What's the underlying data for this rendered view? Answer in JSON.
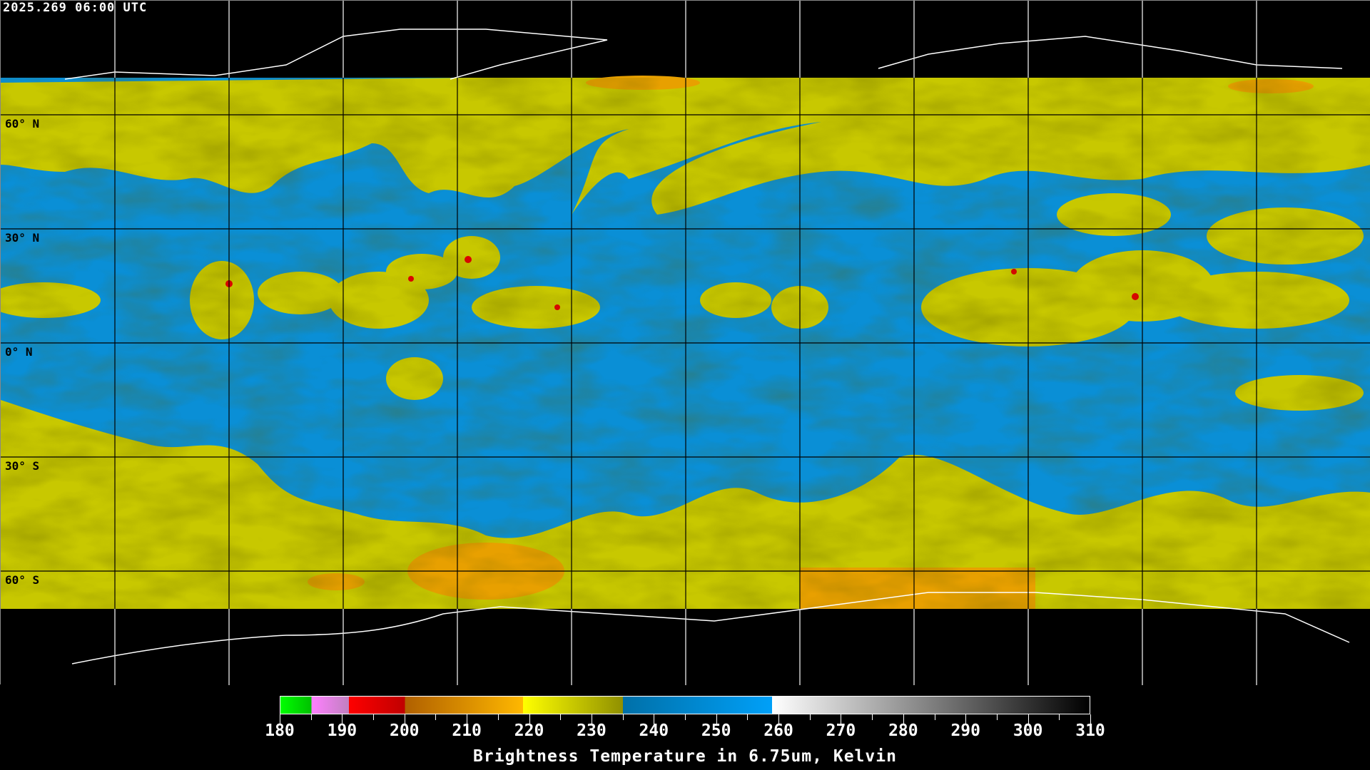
{
  "header": {
    "timestamp": "2025.269 06:00 UTC"
  },
  "map": {
    "projection": "equirectangular",
    "longitude_range": [
      -180,
      180
    ],
    "latitude_range": [
      -90,
      90
    ],
    "grid_spacing_degrees": 30,
    "latitude_labels": [
      "60° N",
      "30° N",
      "0° N",
      "30° S",
      "60° S"
    ],
    "colors": {
      "background": "#000000",
      "moist": "#0a8fd6",
      "dry_band": "#d4d400",
      "cold": "#e8a000",
      "deep": "#e00000",
      "coastline_land": "#000000",
      "coastline_polar": "#ffffff",
      "grid": "#000000"
    }
  },
  "colorbar": {
    "min": 180,
    "max": 310,
    "tick_labels": [
      "180",
      "190",
      "200",
      "210",
      "220",
      "230",
      "240",
      "250",
      "260",
      "270",
      "280",
      "290",
      "300",
      "310"
    ],
    "minor_tick_step": 5,
    "segments": [
      {
        "from": 180,
        "to": 185,
        "c1": "#00ff00",
        "c2": "#00c000"
      },
      {
        "from": 185,
        "to": 191,
        "c1": "#ff80ff",
        "c2": "#c080c0"
      },
      {
        "from": 191,
        "to": 200,
        "c1": "#ff0000",
        "c2": "#c00000"
      },
      {
        "from": 200,
        "to": 219,
        "c1": "#b06000",
        "c2": "#ffb800"
      },
      {
        "from": 219,
        "to": 235,
        "c1": "#ffff00",
        "c2": "#909000"
      },
      {
        "from": 235,
        "to": 259,
        "c1": "#0070a8",
        "c2": "#00a0f8"
      },
      {
        "from": 259,
        "to": 310,
        "c1": "#ffffff",
        "c2": "#000000"
      }
    ],
    "title": "Brightness Temperature in 6.75um, Kelvin"
  }
}
